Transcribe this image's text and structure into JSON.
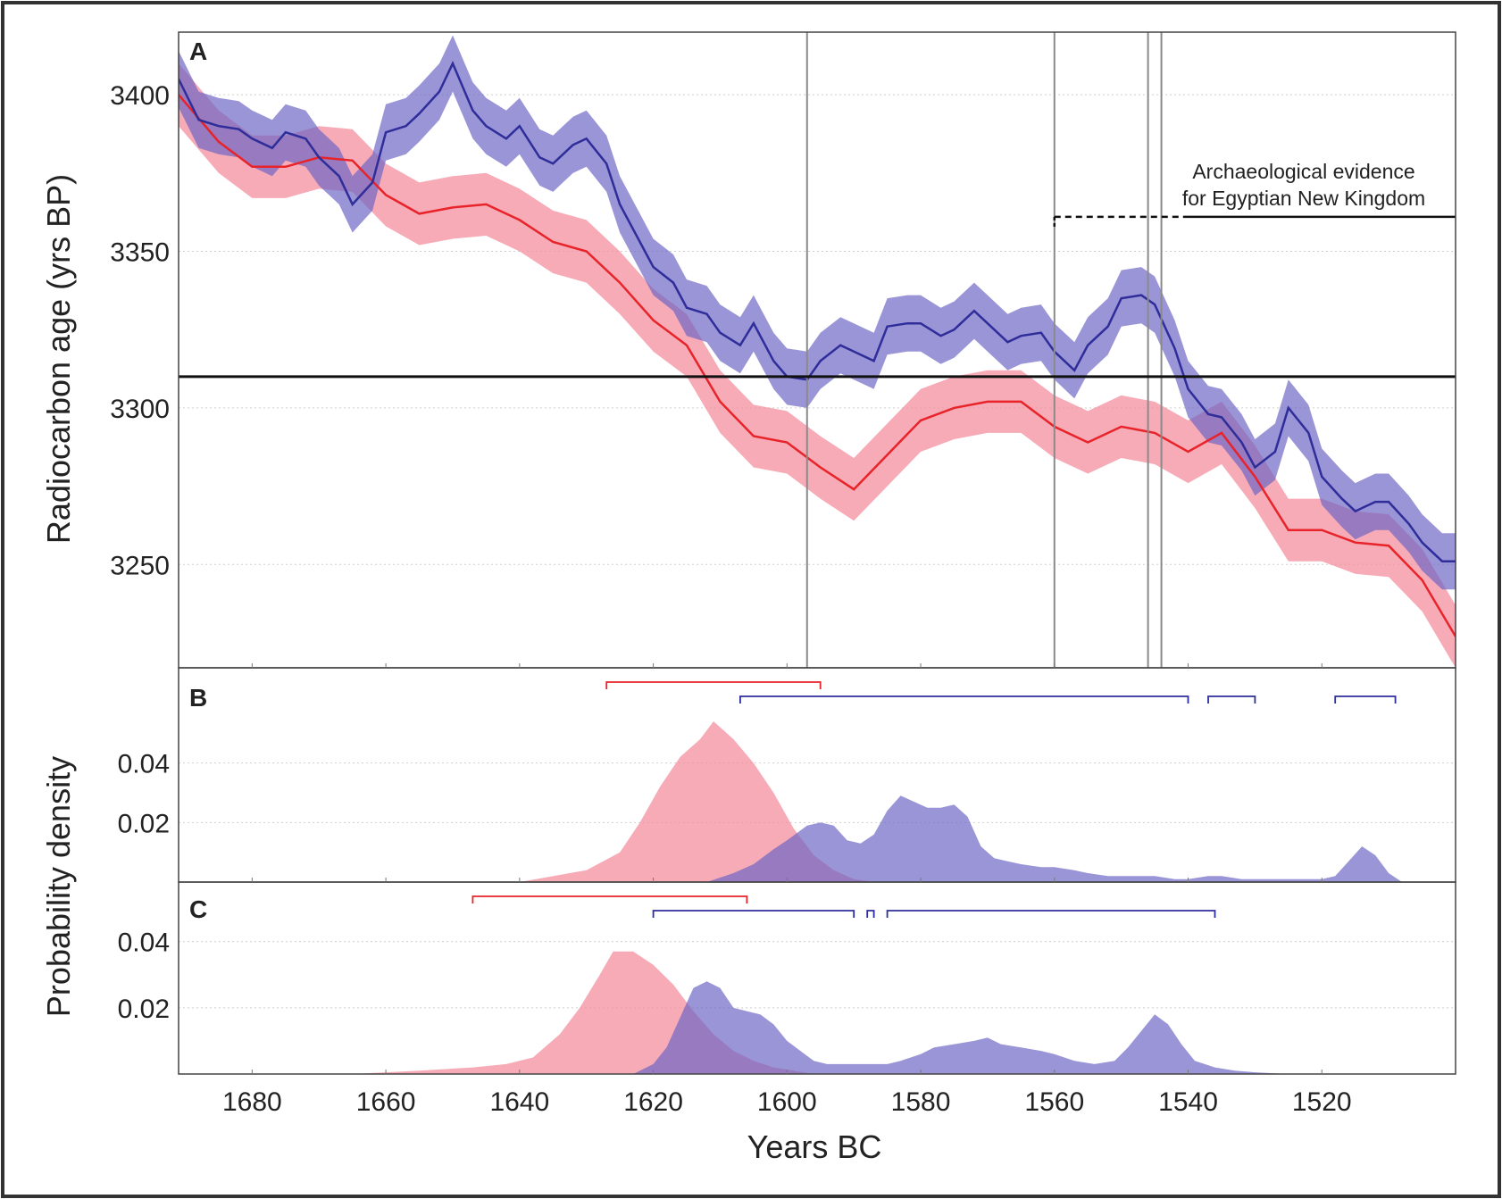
{
  "colors": {
    "red_line": "#e8232a",
    "red_band": "#f28a9b",
    "blue_line": "#2e2d9a",
    "blue_band": "#6a63c2",
    "vertical_lines": "#8a8a8a",
    "threshold_line": "#111111"
  },
  "chart_data": [
    {
      "panel": "A",
      "type": "line",
      "ylabel": "Radiocarbon age (yrs BP)",
      "xlim": [
        1691,
        1500
      ],
      "ylim": [
        3217,
        3420
      ],
      "x_reversed": true,
      "yticks": [
        3400,
        3350,
        3300,
        3250
      ],
      "grid": "horizontal dotted",
      "threshold_y": 3310,
      "vertical_lines_x": [
        1597,
        1560,
        1546,
        1544
      ],
      "annotation": {
        "lines": [
          "Archaeological evidence",
          "for Egyptian New Kingdom"
        ],
        "dashed_from": 1560,
        "solid_from": 1540,
        "to": 1500,
        "y": 3361
      },
      "series": [
        {
          "color": "red",
          "band_halfwidth": 10,
          "x": [
            1691,
            1685,
            1680,
            1675,
            1670,
            1665,
            1660,
            1655,
            1650,
            1645,
            1640,
            1635,
            1630,
            1625,
            1620,
            1615,
            1610,
            1605,
            1600,
            1595,
            1590,
            1585,
            1580,
            1575,
            1570,
            1565,
            1560,
            1555,
            1550,
            1545,
            1540,
            1535,
            1530,
            1525,
            1520,
            1515,
            1510,
            1505,
            1500
          ],
          "y": [
            3400,
            3385,
            3377,
            3377,
            3380,
            3379,
            3368,
            3362,
            3364,
            3365,
            3360,
            3353,
            3350,
            3340,
            3328,
            3320,
            3302,
            3291,
            3289,
            3281,
            3274,
            3285,
            3296,
            3300,
            3302,
            3302,
            3294,
            3289,
            3294,
            3292,
            3286,
            3292,
            3278,
            3261,
            3261,
            3257,
            3256,
            3245,
            3227
          ]
        },
        {
          "color": "blue",
          "band_halfwidth": 9,
          "x": [
            1691,
            1688,
            1685,
            1682,
            1680,
            1677,
            1675,
            1672,
            1670,
            1667,
            1665,
            1662,
            1660,
            1657,
            1655,
            1652,
            1650,
            1647,
            1645,
            1642,
            1640,
            1637,
            1635,
            1632,
            1630,
            1627,
            1625,
            1622,
            1620,
            1617,
            1615,
            1612,
            1610,
            1607,
            1605,
            1602,
            1600,
            1597,
            1595,
            1592,
            1590,
            1587,
            1585,
            1582,
            1580,
            1577,
            1575,
            1572,
            1570,
            1567,
            1565,
            1562,
            1560,
            1557,
            1555,
            1552,
            1550,
            1547,
            1545,
            1542,
            1540,
            1537,
            1535,
            1532,
            1530,
            1527,
            1525,
            1522,
            1520,
            1517,
            1515,
            1512,
            1510,
            1507,
            1505,
            1502,
            1500
          ],
          "y": [
            3405,
            3392,
            3390,
            3389,
            3386,
            3383,
            3388,
            3386,
            3380,
            3374,
            3365,
            3372,
            3388,
            3390,
            3394,
            3401,
            3410,
            3395,
            3390,
            3386,
            3390,
            3380,
            3378,
            3384,
            3386,
            3378,
            3365,
            3353,
            3345,
            3340,
            3332,
            3330,
            3324,
            3320,
            3327,
            3315,
            3310,
            3309,
            3315,
            3320,
            3318,
            3315,
            3326,
            3327,
            3327,
            3323,
            3325,
            3331,
            3327,
            3321,
            3323,
            3324,
            3318,
            3312,
            3320,
            3326,
            3335,
            3336,
            3333,
            3319,
            3306,
            3298,
            3297,
            3289,
            3281,
            3286,
            3300,
            3292,
            3278,
            3271,
            3267,
            3270,
            3270,
            3263,
            3257,
            3251,
            3251
          ]
        }
      ]
    },
    {
      "panel": "B",
      "type": "area",
      "ylabel": "Probability density",
      "xlim": [
        1691,
        1500
      ],
      "ylim": [
        0,
        0.072
      ],
      "yticks": [
        0.04,
        0.02
      ],
      "grid": "horizontal dotted",
      "ranges": [
        {
          "color": "red",
          "from": 1627,
          "to": 1595
        },
        {
          "color": "blue",
          "from": 1607,
          "to": 1540
        },
        {
          "color": "blue",
          "from": 1537,
          "to": 1530
        },
        {
          "color": "blue",
          "from": 1518,
          "to": 1509
        }
      ],
      "series": [
        {
          "color": "red",
          "x": [
            1640,
            1630,
            1625,
            1622,
            1619,
            1616,
            1613,
            1611,
            1608,
            1605,
            1602,
            1599,
            1596,
            1593,
            1590,
            1587
          ],
          "y": [
            0,
            0.004,
            0.01,
            0.02,
            0.032,
            0.042,
            0.048,
            0.054,
            0.048,
            0.04,
            0.03,
            0.018,
            0.009,
            0.004,
            0.001,
            0
          ]
        },
        {
          "color": "blue",
          "x": [
            1612,
            1608,
            1605,
            1602,
            1600,
            1597,
            1595,
            1593,
            1591,
            1589,
            1587,
            1585,
            1583,
            1581,
            1579,
            1577,
            1575,
            1573,
            1571,
            1569,
            1567,
            1565,
            1562,
            1560,
            1557,
            1555,
            1552,
            1550,
            1547,
            1545,
            1542,
            1540,
            1537,
            1535,
            1532,
            1530,
            1527,
            1525,
            1522,
            1520,
            1518,
            1516,
            1514,
            1512,
            1510,
            1508
          ],
          "y": [
            0,
            0.003,
            0.006,
            0.011,
            0.014,
            0.019,
            0.02,
            0.019,
            0.014,
            0.013,
            0.016,
            0.024,
            0.029,
            0.027,
            0.025,
            0.025,
            0.026,
            0.022,
            0.012,
            0.008,
            0.007,
            0.006,
            0.005,
            0.005,
            0.004,
            0.003,
            0.002,
            0.002,
            0.002,
            0.002,
            0.001,
            0.001,
            0.002,
            0.002,
            0.001,
            0.001,
            0.001,
            0.001,
            0.001,
            0.001,
            0.002,
            0.007,
            0.012,
            0.009,
            0.003,
            0
          ]
        }
      ]
    },
    {
      "panel": "C",
      "type": "area",
      "ylabel": "Probability density",
      "xlim": [
        1691,
        1500
      ],
      "ylim": [
        0,
        0.058
      ],
      "yticks": [
        0.04,
        0.02
      ],
      "grid": "horizontal dotted",
      "ranges": [
        {
          "color": "red",
          "from": 1647,
          "to": 1606
        },
        {
          "color": "blue",
          "from": 1620,
          "to": 1590
        },
        {
          "color": "blue",
          "from": 1588,
          "to": 1587
        },
        {
          "color": "blue",
          "from": 1585,
          "to": 1536
        }
      ],
      "series": [
        {
          "color": "red",
          "x": [
            1665,
            1655,
            1647,
            1642,
            1638,
            1634,
            1631,
            1628,
            1626,
            1623,
            1620,
            1617,
            1614,
            1611,
            1608,
            1605,
            1602,
            1599,
            1596
          ],
          "y": [
            0,
            0.001,
            0.002,
            0.003,
            0.005,
            0.012,
            0.02,
            0.03,
            0.037,
            0.037,
            0.033,
            0.027,
            0.019,
            0.012,
            0.007,
            0.004,
            0.002,
            0.001,
            0
          ]
        },
        {
          "color": "blue",
          "x": [
            1623,
            1620,
            1618,
            1616,
            1614,
            1612,
            1610,
            1608,
            1606,
            1604,
            1602,
            1600,
            1598,
            1596,
            1594,
            1592,
            1590,
            1588,
            1585,
            1583,
            1580,
            1578,
            1575,
            1572,
            1570,
            1568,
            1565,
            1562,
            1560,
            1557,
            1554,
            1551,
            1549,
            1547,
            1545,
            1543,
            1541,
            1539,
            1536,
            1533,
            1530,
            1527,
            1524
          ],
          "y": [
            0,
            0.003,
            0.008,
            0.017,
            0.026,
            0.028,
            0.026,
            0.02,
            0.019,
            0.018,
            0.015,
            0.01,
            0.007,
            0.004,
            0.003,
            0.003,
            0.003,
            0.003,
            0.003,
            0.004,
            0.006,
            0.008,
            0.009,
            0.01,
            0.011,
            0.009,
            0.008,
            0.007,
            0.006,
            0.004,
            0.003,
            0.004,
            0.008,
            0.013,
            0.018,
            0.015,
            0.009,
            0.004,
            0.002,
            0.001,
            0.0005,
            0.0002,
            0
          ]
        }
      ]
    }
  ],
  "xticks": [
    1680,
    1660,
    1640,
    1620,
    1600,
    1580,
    1560,
    1540,
    1520
  ],
  "xlabel": "Years BC",
  "panel_letters": [
    "A",
    "B",
    "C"
  ]
}
